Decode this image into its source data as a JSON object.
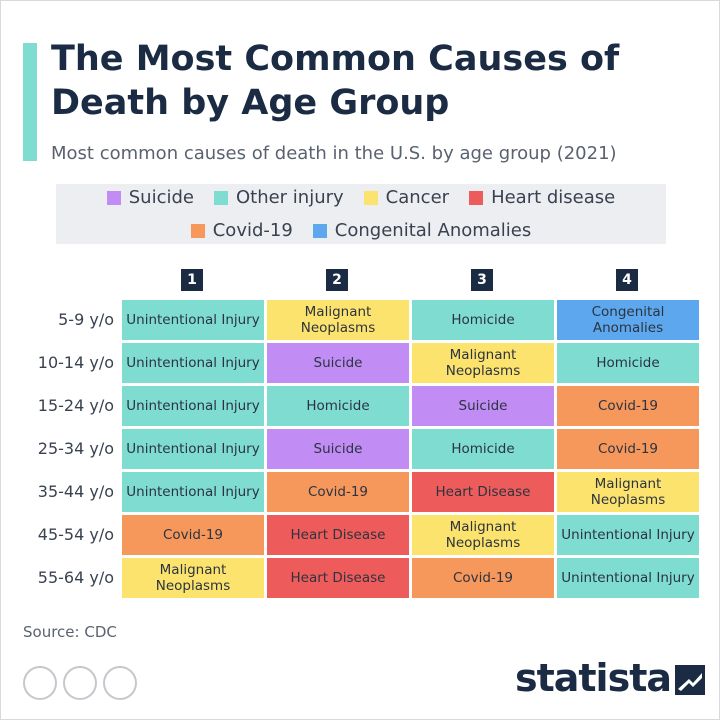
{
  "header": {
    "title": "The Most Common Causes of Death by Age Group",
    "subtitle": "Most common causes of death in the U.S. by age group (2021)"
  },
  "legend": [
    {
      "name": "Suicide",
      "color": "#c18cf4"
    },
    {
      "name": "Other injury",
      "color": "#7edcd1"
    },
    {
      "name": "Cancer",
      "color": "#fce36d"
    },
    {
      "name": "Heart disease",
      "color": "#ee5b5b"
    },
    {
      "name": "Covid-19",
      "color": "#f6975c"
    },
    {
      "name": "Congenital Anomalies",
      "color": "#5ca7ee"
    }
  ],
  "table": {
    "columns": [
      "1",
      "2",
      "3",
      "4"
    ],
    "rows": [
      {
        "label": "5-9 y/o",
        "cells": [
          {
            "text": "Unintentional Injury",
            "color": "#7edcd1"
          },
          {
            "text": "Malignant Neoplasms",
            "color": "#fce36d"
          },
          {
            "text": "Homicide",
            "color": "#7edcd1"
          },
          {
            "text": "Congenital Anomalies",
            "color": "#5ca7ee"
          }
        ]
      },
      {
        "label": "10-14 y/o",
        "cells": [
          {
            "text": "Unintentional Injury",
            "color": "#7edcd1"
          },
          {
            "text": "Suicide",
            "color": "#c18cf4"
          },
          {
            "text": "Malignant Neoplasms",
            "color": "#fce36d"
          },
          {
            "text": "Homicide",
            "color": "#7edcd1"
          }
        ]
      },
      {
        "label": "15-24 y/o",
        "cells": [
          {
            "text": "Unintentional Injury",
            "color": "#7edcd1"
          },
          {
            "text": "Homicide",
            "color": "#7edcd1"
          },
          {
            "text": "Suicide",
            "color": "#c18cf4"
          },
          {
            "text": "Covid-19",
            "color": "#f6975c"
          }
        ]
      },
      {
        "label": "25-34 y/o",
        "cells": [
          {
            "text": "Unintentional Injury",
            "color": "#7edcd1"
          },
          {
            "text": "Suicide",
            "color": "#c18cf4"
          },
          {
            "text": "Homicide",
            "color": "#7edcd1"
          },
          {
            "text": "Covid-19",
            "color": "#f6975c"
          }
        ]
      },
      {
        "label": "35-44 y/o",
        "cells": [
          {
            "text": "Unintentional Injury",
            "color": "#7edcd1"
          },
          {
            "text": "Covid-19",
            "color": "#f6975c"
          },
          {
            "text": "Heart Disease",
            "color": "#ee5b5b"
          },
          {
            "text": "Malignant Neoplasms",
            "color": "#fce36d"
          }
        ]
      },
      {
        "label": "45-54 y/o",
        "cells": [
          {
            "text": "Covid-19",
            "color": "#f6975c"
          },
          {
            "text": "Heart Disease",
            "color": "#ee5b5b"
          },
          {
            "text": "Malignant Neoplasms",
            "color": "#fce36d"
          },
          {
            "text": "Unintentional Injury",
            "color": "#7edcd1"
          }
        ]
      },
      {
        "label": "55-64 y/o",
        "cells": [
          {
            "text": "Malignant Neoplasms",
            "color": "#fce36d"
          },
          {
            "text": "Heart Disease",
            "color": "#ee5b5b"
          },
          {
            "text": "Covid-19",
            "color": "#f6975c"
          },
          {
            "text": "Unintentional Injury",
            "color": "#7edcd1"
          }
        ]
      }
    ]
  },
  "footer": {
    "source": "Source: CDC",
    "brand": "statista"
  }
}
